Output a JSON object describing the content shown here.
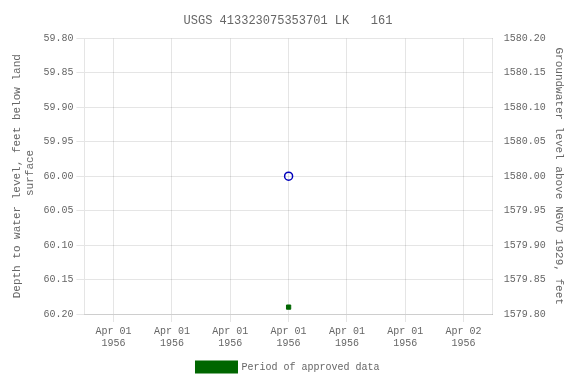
{
  "chart_data": {
    "type": "scatter",
    "title": "USGS 413323075353701 LK   161",
    "y_label": "Depth to water level, feet below land\n surface",
    "y2_label": "Groundwater level above NGVD 1929, feet",
    "categories": [
      "Apr 01\n1956",
      "Apr 01\n1956",
      "Apr 01\n1956",
      "Apr 01\n1956",
      "Apr 01\n1956",
      "Apr 01\n1956",
      "Apr 02\n1956"
    ],
    "series": [
      {
        "values": [
          null,
          null,
          null,
          60.0,
          null,
          null,
          null
        ],
        "color": "#0000bb",
        "marker": "circle_open"
      },
      {
        "name": "Period of approved data",
        "values": [
          null,
          null,
          null,
          60.19,
          null,
          null,
          null
        ],
        "color": "#006600",
        "marker": "square"
      }
    ],
    "ylim": [
      60.2,
      59.8
    ],
    "yticks": [
      {
        "value": 59.8,
        "label": "59.80"
      },
      {
        "value": 59.85,
        "label": "59.85"
      },
      {
        "value": 59.9,
        "label": "59.90"
      },
      {
        "value": 59.95,
        "label": "59.95"
      },
      {
        "value": 60.0,
        "label": "60.00"
      },
      {
        "value": 60.05,
        "label": "60.05"
      },
      {
        "value": 60.1,
        "label": "60.10"
      },
      {
        "value": 60.15,
        "label": "60.15"
      },
      {
        "value": 60.2,
        "label": "60.20"
      }
    ],
    "y2lim": [
      1579.8,
      1580.2
    ],
    "y2ticks": [
      {
        "value": 1579.8,
        "label": "1579.80"
      },
      {
        "value": 1579.85,
        "label": "1579.85"
      },
      {
        "value": 1579.9,
        "label": "1579.90"
      },
      {
        "value": 1579.95,
        "label": "1579.95"
      },
      {
        "value": 1580.0,
        "label": "1580.00"
      },
      {
        "value": 1580.05,
        "label": "1580.05"
      },
      {
        "value": 1580.1,
        "label": "1580.10"
      },
      {
        "value": 1580.15,
        "label": "1580.15"
      },
      {
        "value": 1580.2,
        "label": "1580.20"
      }
    ],
    "grid": true,
    "legend": "bottom"
  }
}
